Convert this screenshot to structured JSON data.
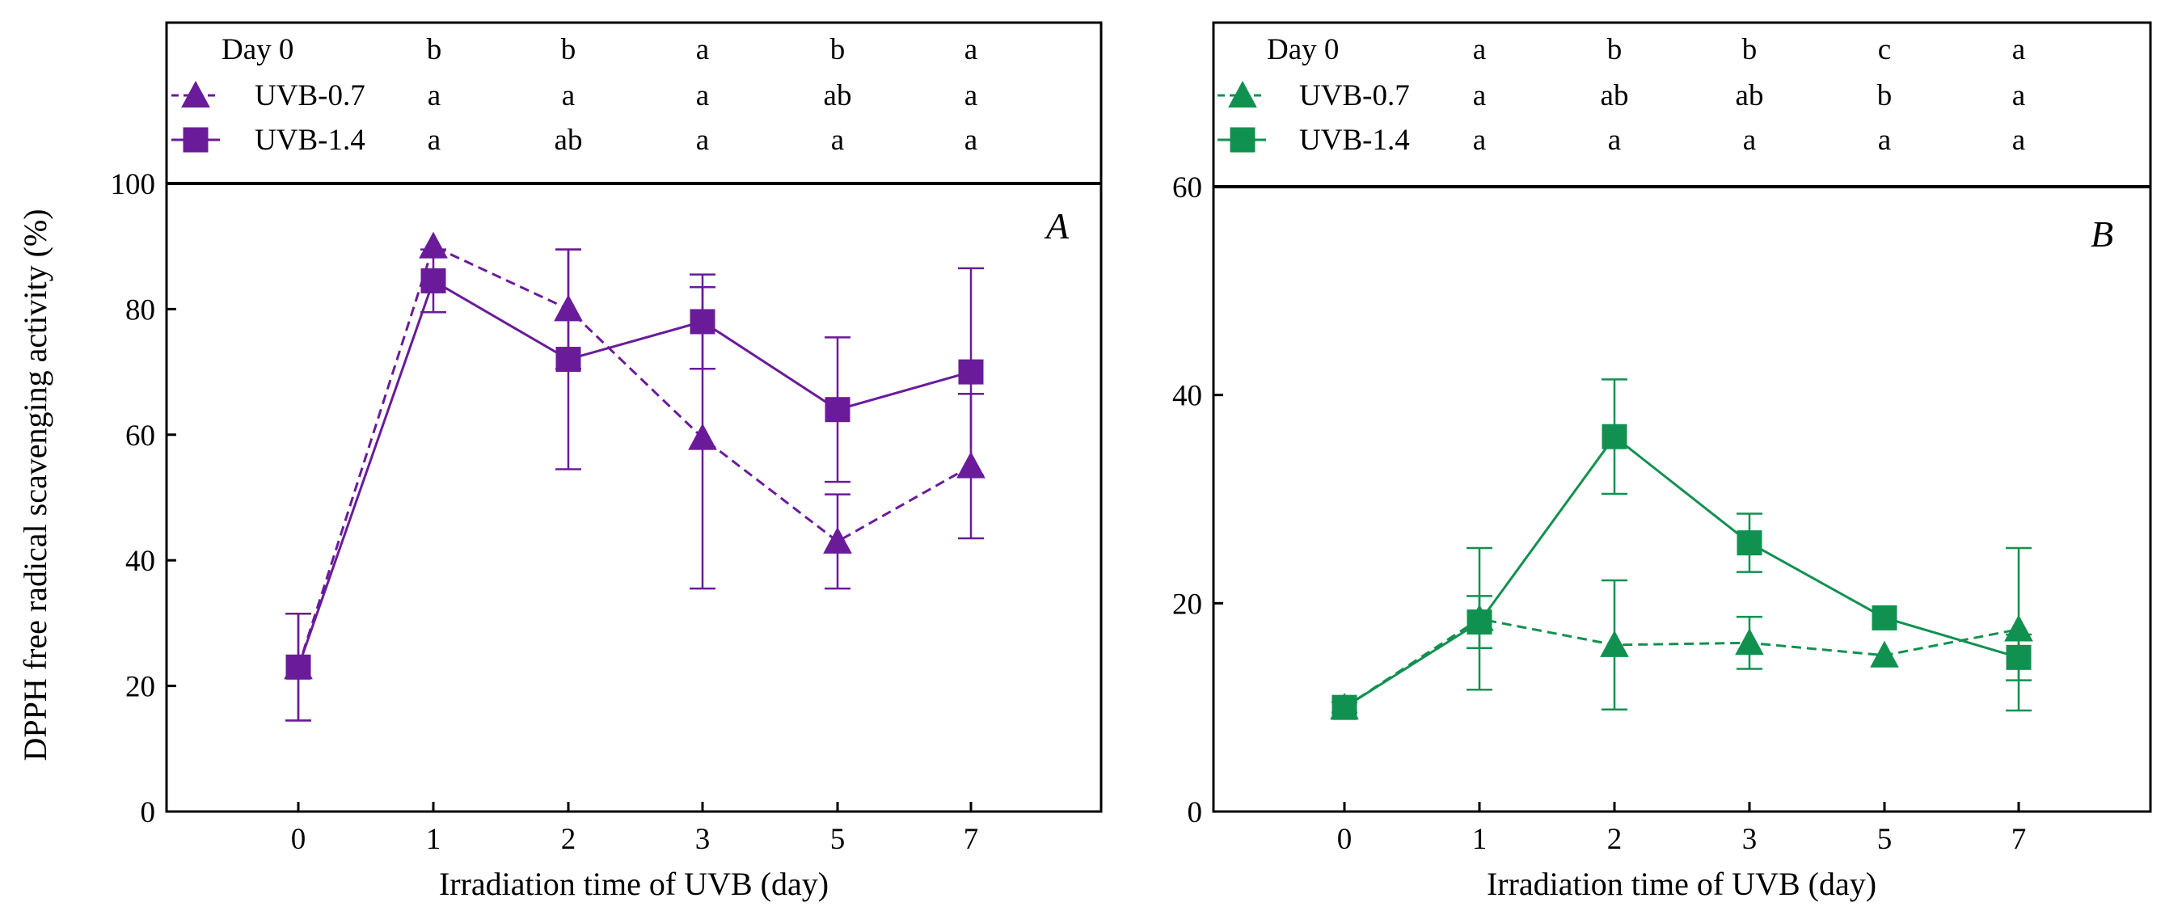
{
  "chart_data": [
    {
      "type": "line",
      "panel_label": "A",
      "color": "#6a1b9a",
      "xlabel": "Irradiation time of UVB (day)",
      "ylabel": "DPPH free radical scavenging activity (%)",
      "categories": [
        "0",
        "1",
        "2",
        "3",
        "5",
        "7"
      ],
      "ylim": [
        0,
        100
      ],
      "yticks": [
        "0",
        "20",
        "40",
        "60",
        "80",
        "100"
      ],
      "series": [
        {
          "name": "UVB-0.7",
          "marker": "triangle",
          "dashed": true,
          "values": [
            23,
            90,
            80,
            59.5,
            43,
            55
          ],
          "errors": [
            8.5,
            0,
            9.5,
            24,
            7.5,
            11.5
          ]
        },
        {
          "name": "UVB-1.4",
          "marker": "square",
          "dashed": false,
          "values": [
            23,
            84.5,
            72,
            78,
            64,
            70
          ],
          "errors": [
            8.5,
            5,
            17.5,
            7.5,
            11.5,
            16.5
          ]
        }
      ],
      "letter_rows": [
        {
          "label": "Day 0",
          "letters": [
            "b",
            "b",
            "a",
            "b",
            "a"
          ]
        },
        {
          "label": "UVB-0.7",
          "letters": [
            "a",
            "a",
            "a",
            "ab",
            "a"
          ]
        },
        {
          "label": "UVB-1.4",
          "letters": [
            "a",
            "ab",
            "a",
            "a",
            "a"
          ]
        }
      ]
    },
    {
      "type": "line",
      "panel_label": "B",
      "color": "#119150",
      "xlabel": "Irradiation time of UVB (day)",
      "ylabel": "",
      "categories": [
        "0",
        "1",
        "2",
        "3",
        "5",
        "7"
      ],
      "ylim": [
        0,
        60
      ],
      "yticks": [
        "0",
        "20",
        "40",
        "60"
      ],
      "series": [
        {
          "name": "UVB-0.7",
          "marker": "triangle",
          "dashed": true,
          "values": [
            10,
            18.5,
            16,
            16.2,
            15,
            17.5
          ],
          "errors": [
            0,
            6.8,
            6.2,
            2.5,
            0,
            7.8
          ]
        },
        {
          "name": "UVB-1.4",
          "marker": "square",
          "dashed": false,
          "values": [
            10,
            18.2,
            36,
            25.8,
            18.6,
            14.8
          ],
          "errors": [
            0.5,
            2.5,
            5.5,
            2.8,
            0,
            2.2
          ]
        }
      ],
      "letter_rows": [
        {
          "label": "Day 0",
          "letters": [
            "a",
            "b",
            "b",
            "c",
            "a"
          ]
        },
        {
          "label": "UVB-0.7",
          "letters": [
            "a",
            "ab",
            "ab",
            "b",
            "a"
          ]
        },
        {
          "label": "UVB-1.4",
          "letters": [
            "a",
            "a",
            "a",
            "a",
            "a"
          ]
        }
      ]
    }
  ]
}
